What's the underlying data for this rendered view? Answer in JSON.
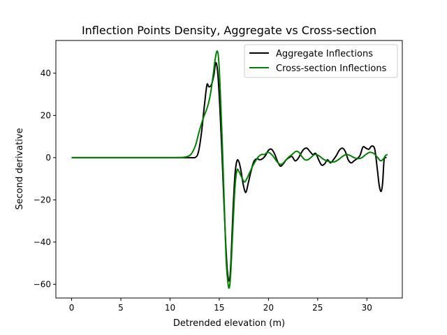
{
  "chart_data": {
    "type": "line",
    "title": "Inflection Points Density, Aggregate vs Cross-section",
    "xlabel": "Detrended elevation (m)",
    "ylabel": "Second derivative",
    "xlim": [
      -1.6,
      33.6
    ],
    "ylim": [
      -66.5,
      55.5
    ],
    "xticks": [
      0,
      5,
      10,
      15,
      20,
      25,
      30
    ],
    "yticks": [
      -60,
      -40,
      -20,
      0,
      20,
      40
    ],
    "xtick_labels": [
      "0",
      "5",
      "10",
      "15",
      "20",
      "25",
      "30"
    ],
    "ytick_labels": [
      "−60",
      "−40",
      "−20",
      "0",
      "20",
      "40"
    ],
    "grid": false,
    "legend_position": "top-right",
    "series": [
      {
        "name": "Aggregate Inflections",
        "color": "#000000",
        "points": [
          [
            0,
            0
          ],
          [
            5,
            0
          ],
          [
            10,
            0
          ],
          [
            12,
            0
          ],
          [
            12.6,
            0.2
          ],
          [
            12.9,
            3
          ],
          [
            13.2,
            12
          ],
          [
            13.5,
            25
          ],
          [
            13.75,
            34.5
          ],
          [
            13.95,
            33.5
          ],
          [
            14.2,
            34.5
          ],
          [
            14.45,
            39
          ],
          [
            14.65,
            45
          ],
          [
            14.85,
            40
          ],
          [
            15.05,
            25
          ],
          [
            15.25,
            5
          ],
          [
            15.45,
            -18
          ],
          [
            15.65,
            -40
          ],
          [
            15.85,
            -55
          ],
          [
            16.05,
            -58
          ],
          [
            16.2,
            -48
          ],
          [
            16.4,
            -25
          ],
          [
            16.6,
            -8
          ],
          [
            16.8,
            -1.5
          ],
          [
            17.0,
            -2
          ],
          [
            17.2,
            -6
          ],
          [
            17.45,
            -13
          ],
          [
            17.7,
            -16.5
          ],
          [
            17.95,
            -12
          ],
          [
            18.2,
            -7
          ],
          [
            18.5,
            -2
          ],
          [
            18.8,
            -0.5
          ],
          [
            19.1,
            -1
          ],
          [
            19.4,
            -0.5
          ],
          [
            19.7,
            1
          ],
          [
            20.0,
            3.5
          ],
          [
            20.3,
            4
          ],
          [
            20.6,
            2
          ],
          [
            20.9,
            -1.5
          ],
          [
            21.2,
            -4
          ],
          [
            21.5,
            -3
          ],
          [
            21.8,
            -1
          ],
          [
            22.1,
            0
          ],
          [
            22.4,
            0.5
          ],
          [
            22.7,
            -1.5
          ],
          [
            23.0,
            -0.5
          ],
          [
            23.3,
            2
          ],
          [
            23.6,
            4
          ],
          [
            23.9,
            4.5
          ],
          [
            24.2,
            3
          ],
          [
            24.5,
            1.5
          ],
          [
            24.8,
            2
          ],
          [
            25.1,
            -1
          ],
          [
            25.4,
            -3.5
          ],
          [
            25.7,
            -3
          ],
          [
            26.0,
            -1
          ],
          [
            26.3,
            -2.5
          ],
          [
            26.6,
            -1
          ],
          [
            26.9,
            1
          ],
          [
            27.2,
            3.5
          ],
          [
            27.5,
            4.5
          ],
          [
            27.8,
            3
          ],
          [
            28.1,
            -1
          ],
          [
            28.4,
            -2.5
          ],
          [
            28.7,
            -1.5
          ],
          [
            29.0,
            -0.5
          ],
          [
            29.3,
            1
          ],
          [
            29.6,
            5
          ],
          [
            29.9,
            4.5
          ],
          [
            30.2,
            4
          ],
          [
            30.5,
            5.5
          ],
          [
            30.8,
            4
          ],
          [
            31.05,
            -5
          ],
          [
            31.25,
            -13
          ],
          [
            31.45,
            -16
          ],
          [
            31.6,
            -12
          ],
          [
            31.75,
            -1
          ],
          [
            31.9,
            0
          ],
          [
            32,
            0
          ]
        ]
      },
      {
        "name": "Cross-section Inflections",
        "color": "#008000",
        "points": [
          [
            0,
            0
          ],
          [
            5,
            0
          ],
          [
            10,
            0
          ],
          [
            11.2,
            0.1
          ],
          [
            11.8,
            0.6
          ],
          [
            12.2,
            2
          ],
          [
            12.6,
            6
          ],
          [
            13.0,
            13
          ],
          [
            13.4,
            19
          ],
          [
            13.8,
            24
          ],
          [
            14.1,
            30
          ],
          [
            14.35,
            38
          ],
          [
            14.6,
            47
          ],
          [
            14.8,
            50.5
          ],
          [
            14.95,
            46
          ],
          [
            15.1,
            32
          ],
          [
            15.3,
            8
          ],
          [
            15.5,
            -20
          ],
          [
            15.7,
            -48
          ],
          [
            15.9,
            -60
          ],
          [
            16.05,
            -61
          ],
          [
            16.2,
            -52
          ],
          [
            16.4,
            -32
          ],
          [
            16.6,
            -14
          ],
          [
            16.8,
            -6
          ],
          [
            17.0,
            -6.5
          ],
          [
            17.25,
            -9
          ],
          [
            17.55,
            -11.5
          ],
          [
            17.8,
            -10
          ],
          [
            18.1,
            -7
          ],
          [
            18.4,
            -4
          ],
          [
            18.7,
            -1.5
          ],
          [
            19.0,
            0.5
          ],
          [
            19.3,
            1.5
          ],
          [
            19.6,
            1.5
          ],
          [
            19.9,
            2.5
          ],
          [
            20.2,
            2
          ],
          [
            20.5,
            0.5
          ],
          [
            20.8,
            -1.5
          ],
          [
            21.1,
            -3
          ],
          [
            21.4,
            -3
          ],
          [
            21.7,
            -1.5
          ],
          [
            22.0,
            0
          ],
          [
            22.4,
            1.5
          ],
          [
            22.8,
            3
          ],
          [
            23.1,
            2.5
          ],
          [
            23.4,
            0.5
          ],
          [
            23.7,
            -1
          ],
          [
            24.0,
            -1
          ],
          [
            24.3,
            0
          ],
          [
            24.7,
            1.5
          ],
          [
            25.1,
            1
          ],
          [
            25.5,
            -0.5
          ],
          [
            25.9,
            -1.5
          ],
          [
            26.3,
            -2
          ],
          [
            26.7,
            -2
          ],
          [
            27.1,
            -1
          ],
          [
            27.5,
            0.5
          ],
          [
            27.9,
            1.5
          ],
          [
            28.3,
            1
          ],
          [
            28.7,
            0
          ],
          [
            29.1,
            -0.5
          ],
          [
            29.5,
            0
          ],
          [
            29.9,
            1.5
          ],
          [
            30.3,
            2.5
          ],
          [
            30.7,
            2
          ],
          [
            31.1,
            0
          ],
          [
            31.4,
            -1.5
          ],
          [
            31.7,
            -0.5
          ],
          [
            31.9,
            1
          ],
          [
            32.1,
            1.5
          ]
        ]
      }
    ]
  }
}
